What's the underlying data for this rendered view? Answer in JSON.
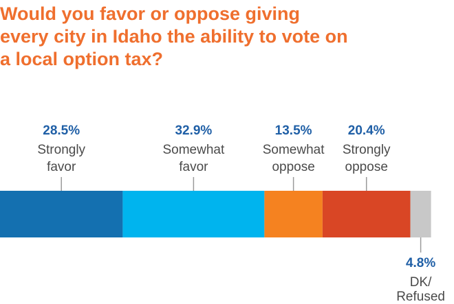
{
  "title": "Would you favor or oppose giving\nevery city in Idaho the ability to vote on\na local option tax?",
  "chart_data": {
    "type": "bar",
    "orientation": "horizontal-stacked",
    "categories": [
      "Strongly favor",
      "Somewhat favor",
      "Somewhat oppose",
      "Strongly oppose",
      "DK/ Refused"
    ],
    "values": [
      28.5,
      32.9,
      13.5,
      20.4,
      4.8
    ],
    "value_labels": [
      "28.5%",
      "32.9%",
      "13.5%",
      "20.4%",
      "4.8%"
    ],
    "label_lines": [
      [
        "Strongly",
        "favor"
      ],
      [
        "Somewhat",
        "favor"
      ],
      [
        "Somewhat",
        "oppose"
      ],
      [
        "Strongly",
        "oppose"
      ],
      [
        "DK/",
        "Refused"
      ]
    ],
    "label_positions": [
      "above",
      "above",
      "above",
      "above",
      "below"
    ],
    "colors": [
      "#1470b0",
      "#00b4ee",
      "#f58220",
      "#d94625",
      "#c8c8c8"
    ],
    "xlim": [
      0,
      100
    ]
  }
}
